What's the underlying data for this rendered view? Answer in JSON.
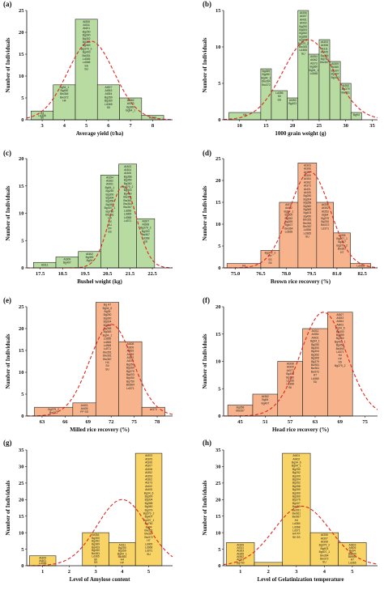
{
  "figure": {
    "colors": {
      "green": "#b7dba0",
      "orange": "#f7b48c",
      "yellow": "#f8d366",
      "curve": "#e0251b",
      "bar_stroke": "#222222"
    }
  },
  "chart_data": [
    {
      "id": "a",
      "panel_label": "(a)",
      "type": "bar",
      "color": "green",
      "xlabel": "Average yield (t/ha)",
      "ylabel": "Number of Individuals",
      "xlim": [
        2.3,
        8.9
      ],
      "ylim": [
        0,
        25
      ],
      "xticks": [
        3,
        4,
        5,
        6,
        7,
        8
      ],
      "yticks": [
        0,
        5,
        10,
        15,
        20,
        25
      ],
      "bins": [
        {
          "x0": 2.5,
          "x1": 3.5,
          "value": 2,
          "notes": [
            "H4",
            "Ld356",
            "SII"
          ]
        },
        {
          "x0": 3.5,
          "x1": 4.5,
          "value": 8,
          "notes": [
            "Bg94_1",
            "Bg450",
            "Bw364",
            "Bw372",
            "H4"
          ]
        },
        {
          "x0": 4.5,
          "x1": 5.5,
          "value": 23,
          "notes": [
            "At306",
            "At311",
            "At401",
            "Bg250",
            "Bg300",
            "Bg352",
            "Bg358",
            "Bg369",
            "Bg379_2",
            "Bg403",
            "Bw351",
            "Ld365",
            "Ld368",
            "SS",
            "SU"
          ]
        },
        {
          "x0": 5.5,
          "x1": 6.5,
          "value": 8,
          "notes": [
            "At307",
            "At353",
            "At354",
            "Bg359",
            "Bg360",
            "Ld365",
            "SII"
          ]
        },
        {
          "x0": 6.5,
          "x1": 7.5,
          "value": 5,
          "notes": [
            "At362",
            "At373",
            "Bg360",
            "Bg94_1"
          ]
        },
        {
          "x0": 7.5,
          "x1": 8.5,
          "value": 1,
          "notes": [
            "At303"
          ]
        }
      ],
      "curve": {
        "mean": 5.2,
        "sd": 1.05,
        "peak": 18
      }
    },
    {
      "id": "b",
      "panel_label": "(b)",
      "type": "bar",
      "color": "green",
      "xlabel": "1000 grain weight (g)",
      "ylabel": "Number of Individuals",
      "xlim": [
        7,
        36
      ],
      "ylim": [
        0,
        15
      ],
      "xticks": [
        10,
        15,
        20,
        25,
        30,
        35
      ],
      "yticks": [
        0,
        5,
        10,
        15
      ],
      "bins": [
        {
          "x0": 8,
          "x1": 14,
          "value": 1,
          "notes": [
            "H4"
          ]
        },
        {
          "x0": 14,
          "x1": 16,
          "value": 7,
          "notes": [
            "Bg359",
            "Bg450",
            "Bg94_1",
            "Bw364",
            "Bw372"
          ]
        },
        {
          "x0": 16,
          "x1": 19,
          "value": 4,
          "notes": [
            "Ld356",
            "SII",
            "SS"
          ]
        },
        {
          "x0": 19,
          "x1": 21,
          "value": 3,
          "notes": [
            "At353",
            "Bg403"
          ]
        },
        {
          "x0": 21,
          "x1": 23,
          "value": 15,
          "notes": [
            "At306",
            "At307",
            "At401",
            "At402",
            "Bg250",
            "Bg300",
            "Bg352",
            "Bg358",
            "Bg369",
            "Bg379_2",
            "Bw351",
            "Ld365",
            "SU"
          ]
        },
        {
          "x0": 23,
          "x1": 25,
          "value": 9,
          "notes": [
            "At354",
            "At362",
            "At373",
            "Bg360",
            "Bg94_1",
            "Ld368"
          ]
        },
        {
          "x0": 25,
          "x1": 27,
          "value": 11,
          "notes": [
            "At303",
            "At308",
            "At311",
            "At405",
            "Bg359",
            "Bg750",
            "Bw367"
          ]
        },
        {
          "x0": 27,
          "x1": 29,
          "value": 8,
          "notes": [
            "At309",
            "At365",
            "Bg307",
            "Bg407",
            "Bg450"
          ]
        },
        {
          "x0": 29,
          "x1": 31,
          "value": 5,
          "notes": [
            "At352",
            "Bg379",
            "Bw361"
          ]
        },
        {
          "x0": 31,
          "x1": 33,
          "value": 1,
          "notes": [
            "Bg94"
          ]
        }
      ],
      "curve": {
        "mean": 23,
        "sd": 4.8,
        "peak": 11
      }
    },
    {
      "id": "c",
      "panel_label": "(c)",
      "type": "bar",
      "color": "green",
      "xlabel": "Bushel weight (kg)",
      "ylabel": "Number of Individuals",
      "xlim": [
        16.9,
        23.4
      ],
      "ylim": [
        0,
        20
      ],
      "xticks": [
        17.5,
        18.5,
        19.5,
        20.5,
        21.5,
        22.5
      ],
      "yticks": [
        0,
        5,
        10,
        15,
        20
      ],
      "bins": [
        {
          "x0": 17.2,
          "x1": 18.2,
          "value": 1,
          "notes": [
            "At311"
          ]
        },
        {
          "x0": 18.2,
          "x1": 19.2,
          "value": 2,
          "notes": [
            "At309",
            "Bg407"
          ]
        },
        {
          "x0": 19.2,
          "x1": 20.2,
          "value": 3,
          "notes": [
            "At362",
            "Bg359",
            "Bg94"
          ]
        },
        {
          "x0": 20.2,
          "x1": 21.0,
          "value": 17,
          "notes": [
            "At354",
            "At362",
            "At401",
            "Bg94_1",
            "Bg250",
            "Bg300",
            "Bg304",
            "Bg358",
            "Bg369",
            "Bg407_1",
            "Bg750",
            "Bw251",
            "H4",
            "SII",
            "SU",
            "PP",
            "SS"
          ]
        },
        {
          "x0": 21.0,
          "x1": 21.8,
          "value": 19,
          "notes": [
            "At303",
            "At304",
            "At305",
            "Bg358",
            "Bg359",
            "Bg360",
            "Bg379_2",
            "Bg403",
            "Bg450",
            "Bw351",
            "Bw361",
            "Bw364",
            "Bw367",
            "Ld356",
            "Ld365",
            "Ld368",
            "Ld371"
          ]
        },
        {
          "x0": 21.8,
          "x1": 22.6,
          "value": 9,
          "notes": [
            "At307",
            "At308",
            "Bg379_2",
            "Bg300",
            "Bw367",
            "Ld368",
            "SS"
          ]
        }
      ],
      "curve": {
        "mean": 21.2,
        "sd": 0.6,
        "peak": 15
      }
    },
    {
      "id": "d",
      "panel_label": "(d)",
      "type": "bar",
      "color": "orange",
      "xlabel": "Brown rice recovery (%)",
      "ylabel": "Number of Individuals",
      "xlim": [
        74.3,
        83.4
      ],
      "ylim": [
        0,
        25
      ],
      "xticks": [
        75.0,
        76.5,
        78.0,
        79.5,
        81.0,
        82.5
      ],
      "yticks": [
        0,
        5,
        10,
        15,
        20,
        25
      ],
      "bins": [
        {
          "x0": 74.5,
          "x1": 76.5,
          "value": 1,
          "notes": [
            "H4"
          ]
        },
        {
          "x0": 76.5,
          "x1": 77.6,
          "value": 4,
          "notes": [
            "Bg379_2",
            "PP",
            "SS",
            "SII"
          ]
        },
        {
          "x0": 77.6,
          "x1": 78.7,
          "value": 15,
          "notes": [
            "At311",
            "At402",
            "Bg94_1",
            "Bg300",
            "Bg352",
            "Bg359",
            "Bg407",
            "Bw364",
            "Ld368"
          ]
        },
        {
          "x0": 78.7,
          "x1": 79.8,
          "value": 24,
          "notes": [
            "At303",
            "At306",
            "At307",
            "At309",
            "At354",
            "At362",
            "At373",
            "At401",
            "At405",
            "Bg250",
            "Bg304",
            "Bg358",
            "Bg360",
            "Bg369",
            "Bg403",
            "Bg450",
            "Bw351",
            "Bw361",
            "Bw367",
            "Ld356",
            "Ld365",
            "SU"
          ]
        },
        {
          "x0": 79.8,
          "x1": 80.8,
          "value": 15,
          "notes": [
            "At308",
            "At352",
            "At353",
            "Bg94",
            "Bg379",
            "Bg750",
            "Bw372",
            "Ld371"
          ]
        },
        {
          "x0": 80.8,
          "x1": 81.8,
          "value": 8,
          "notes": [
            "At305",
            "Bg407_1",
            "Bg307",
            "Bg379_2",
            "Bw367",
            "H7"
          ]
        },
        {
          "x0": 81.8,
          "x1": 83.0,
          "value": 1,
          "notes": [
            "Ld365"
          ]
        }
      ],
      "curve": {
        "mean": 79.4,
        "sd": 1.2,
        "peak": 22
      }
    },
    {
      "id": "e",
      "panel_label": "(e)",
      "type": "bar",
      "color": "orange",
      "xlabel": "Milled rice recovery (%)",
      "ylabel": "Number of Individuals",
      "xlim": [
        61,
        80
      ],
      "ylim": [
        0,
        25
      ],
      "xticks": [
        63,
        66,
        69,
        72,
        75,
        78
      ],
      "yticks": [
        0,
        5,
        10,
        15,
        20,
        25
      ],
      "bins": [
        {
          "x0": 62,
          "x1": 67,
          "value": 2,
          "notes": [
            "Bg379_2",
            "Bw372"
          ]
        },
        {
          "x0": 67,
          "x1": 70,
          "value": 3,
          "notes": [
            "At401",
            "At405",
            "PP SS"
          ]
        },
        {
          "x0": 70,
          "x1": 73,
          "value": 26,
          "notes": [
            "Bg H7",
            "Bg34_6",
            "Bg35",
            "Bg250",
            "Bg300",
            "Bg304",
            "Bg308",
            "Bg358",
            "Bg369",
            "Bg94_1",
            "Ld356",
            "Ld365",
            "Ld368",
            "Ld371",
            "Bw351",
            "Bw361",
            "Bw367",
            "H4",
            "SII",
            "SU"
          ]
        },
        {
          "x0": 73,
          "x1": 76,
          "value": 17,
          "notes": [
            "At308",
            "At309",
            "At353",
            "At354",
            "At362",
            "At373",
            "Bg359",
            "Bg360",
            "Bg379",
            "Bg403",
            "Bg450",
            "Bg750",
            "Bw364",
            "Ld371"
          ]
        },
        {
          "x0": 76,
          "x1": 79,
          "value": 2,
          "notes": [
            "At373"
          ]
        }
      ],
      "curve": {
        "mean": 72,
        "sd": 2.8,
        "peak": 21
      }
    },
    {
      "id": "f",
      "panel_label": "(f)",
      "type": "bar",
      "color": "orange",
      "xlabel": "Head rice recovery (%)",
      "ylabel": "Number of Individuals",
      "xlim": [
        41,
        78
      ],
      "ylim": [
        0,
        20
      ],
      "xticks": [
        45,
        51,
        57,
        63,
        69,
        75
      ],
      "yticks": [
        0,
        5,
        10,
        15,
        20
      ],
      "bins": [
        {
          "x0": 42,
          "x1": 48,
          "value": 2,
          "notes": [
            "Bg358",
            "Bw367"
          ]
        },
        {
          "x0": 48,
          "x1": 54,
          "value": 4,
          "notes": [
            "At362",
            "Bg94",
            "Bg407"
          ]
        },
        {
          "x0": 54,
          "x1": 60,
          "value": 10,
          "notes": [
            "At308",
            "At309",
            "At373",
            "Bg403",
            "Bg750",
            "Ld356",
            "Ld368",
            "SII"
          ]
        },
        {
          "x0": 60,
          "x1": 66,
          "value": 16,
          "notes": [
            "At311",
            "At353",
            "At401",
            "Bg94_1",
            "Bg250",
            "Bg300",
            "Bg304",
            "Bg352",
            "Bg369",
            "Bg379",
            "Bw351",
            "Bw361",
            "Bw372",
            "H7",
            "Ld365",
            "SU"
          ]
        },
        {
          "x0": 66,
          "x1": 72,
          "value": 19,
          "notes": [
            "At307",
            "At353",
            "At354",
            "At402",
            "Bg34_6",
            "Bg300",
            "Bg359",
            "Bg360",
            "Bg407_1",
            "Bg450",
            "Bw364",
            "Ld371",
            "H4",
            "PP",
            "SS",
            "Bg379_2"
          ]
        }
      ],
      "curve": {
        "mean": 65,
        "sd": 5.5,
        "peak": 19
      }
    },
    {
      "id": "g",
      "panel_label": "(g)",
      "type": "bar",
      "color": "yellow",
      "xlabel": "Level of Amylose content",
      "ylabel": "Number of Individuals",
      "xlim": [
        0.4,
        5.9
      ],
      "ylim": [
        0,
        35
      ],
      "xticks": [
        1,
        2,
        3,
        4,
        5
      ],
      "yticks": [
        0,
        5,
        10,
        15,
        20,
        25,
        30,
        35
      ],
      "bins": [
        {
          "x0": 0.5,
          "x1": 1.5,
          "value": 3,
          "notes": [
            "At309",
            "At401",
            "Ld356"
          ]
        },
        {
          "x0": 2.5,
          "x1": 3.5,
          "value": 10,
          "notes": [
            "At354",
            "Bg300",
            "Bg352",
            "Bg369",
            "Bg403",
            "Bg450",
            "Bw361",
            "Ld365",
            "SII",
            "SS"
          ]
        },
        {
          "x0": 3.5,
          "x1": 4.5,
          "value": 7,
          "notes": [
            "At311",
            "Bg250",
            "Bg359",
            "Bg94_1",
            "Bw364",
            "H4",
            "PP"
          ]
        },
        {
          "x0": 4.5,
          "x1": 5.5,
          "value": 34,
          "notes": [
            "At303",
            "At305",
            "At306",
            "At307",
            "At308",
            "At352",
            "At353",
            "At362",
            "At373",
            "At402",
            "At405",
            "Bg34_6",
            "Bg300",
            "Bg304",
            "Bg358",
            "Bg360",
            "Bg379",
            "Bg379_2",
            "Bg407",
            "Bg407_1",
            "Bg750",
            "Bg94",
            "Bw351",
            "Bw367",
            "Bw372",
            "H7",
            "Ld365",
            "Ld368",
            "Ld371",
            "SU"
          ]
        }
      ],
      "curve": {
        "mean": 4.0,
        "sd": 0.95,
        "peak": 20
      }
    },
    {
      "id": "h",
      "panel_label": "(h)",
      "type": "bar",
      "color": "yellow",
      "xlabel": "Level of Gelatinization temperature",
      "ylabel": "Number of Individuals",
      "xlim": [
        0.4,
        5.9
      ],
      "ylim": [
        0,
        35
      ],
      "xticks": [
        1,
        2,
        3,
        4,
        5
      ],
      "yticks": [
        0,
        5,
        10,
        15,
        20,
        25,
        30,
        35
      ],
      "bins": [
        {
          "x0": 0.5,
          "x1": 1.5,
          "value": 7,
          "notes": [
            "At309",
            "At311",
            "At353",
            "At355",
            "At362",
            "At373",
            "Bg750"
          ]
        },
        {
          "x0": 1.5,
          "x1": 2.5,
          "value": 1,
          "notes": [
            "Ld356"
          ]
        },
        {
          "x0": 2.5,
          "x1": 3.5,
          "value": 34,
          "notes": [
            "At401",
            "At402",
            "Bg34_6",
            "Bg94_1",
            "Bg250",
            "Bg252",
            "Bg300",
            "Bg304",
            "Bg352",
            "Bg358",
            "Bg359",
            "Bg360",
            "Bg369",
            "Bg379",
            "Bg407",
            "Bg450",
            "Bw351",
            "Bw361",
            "Bw367",
            "H4",
            "Ld365",
            "Ld368",
            "Ld371",
            "H4 PP",
            "SII SS"
          ]
        },
        {
          "x0": 3.5,
          "x1": 4.5,
          "value": 10,
          "notes": [
            "At306",
            "At307",
            "At308",
            "Bg379_2",
            "Bg403",
            "Bg407_1",
            "Bw364",
            "Bw372",
            "SU"
          ]
        },
        {
          "x0": 4.5,
          "x1": 5.5,
          "value": 7,
          "notes": [
            "At303",
            "At305",
            "Bg94",
            "Bg300",
            "Bw361",
            "H7",
            "Ld365"
          ]
        }
      ],
      "curve": {
        "mean": 3.2,
        "sd": 1.0,
        "peak": 18
      }
    }
  ]
}
